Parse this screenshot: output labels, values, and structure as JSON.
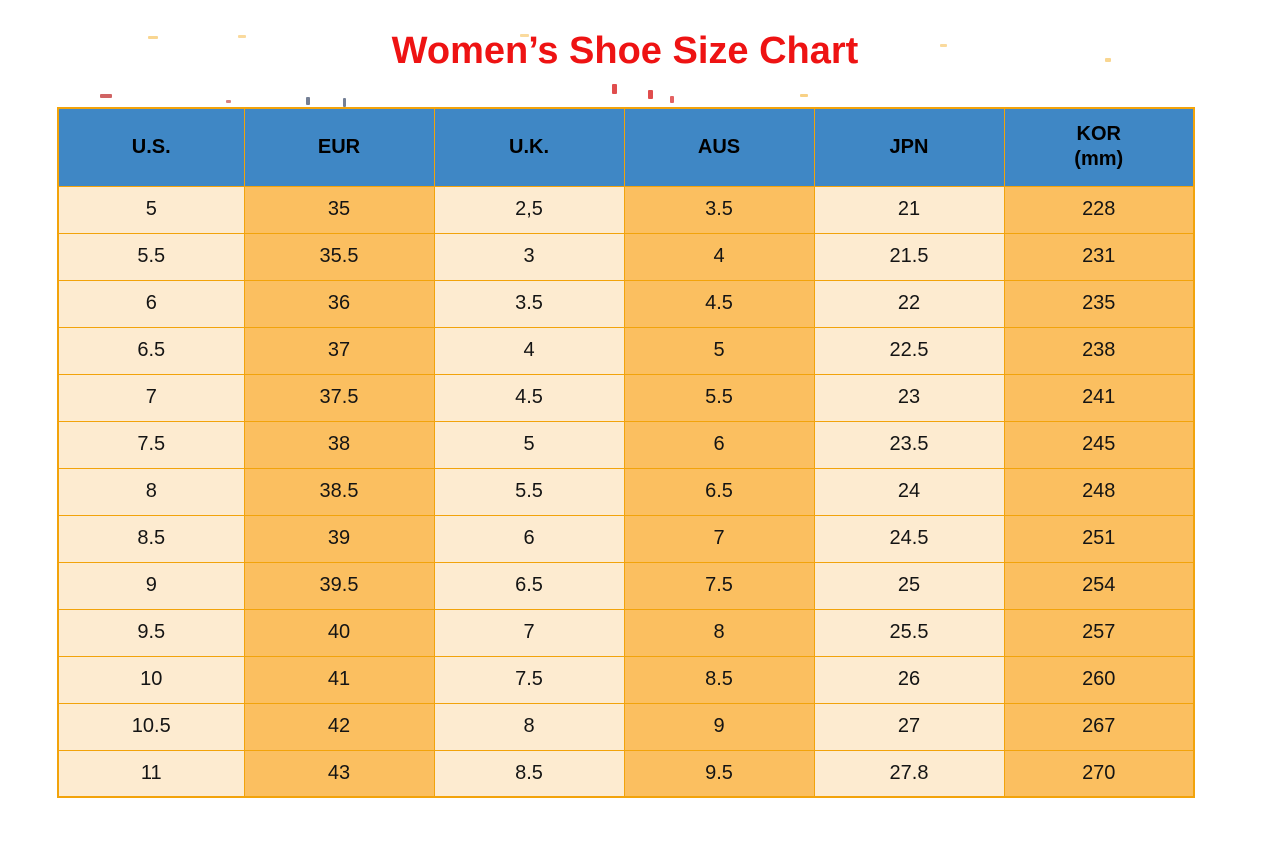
{
  "page": {
    "title": "Women’s Shoe Size Chart",
    "title_color": "#ee1313",
    "background": "#ffffff"
  },
  "chart_data": {
    "type": "table",
    "title": "Women’s Shoe Size Chart",
    "columns": [
      "U.S.",
      "EUR",
      "U.K.",
      "AUS",
      "JPN",
      "KOR (mm)"
    ],
    "header": [
      {
        "label": "U.S."
      },
      {
        "label": "EUR"
      },
      {
        "label": "U.K."
      },
      {
        "label": "AUS"
      },
      {
        "label": "JPN"
      },
      {
        "label": "KOR",
        "sublabel": "(mm)"
      }
    ],
    "rows": [
      [
        "5",
        "35",
        "2,5",
        "3.5",
        "21",
        "228"
      ],
      [
        "5.5",
        "35.5",
        "3",
        "4",
        "21.5",
        "231"
      ],
      [
        "6",
        "36",
        "3.5",
        "4.5",
        "22",
        "235"
      ],
      [
        "6.5",
        "37",
        "4",
        "5",
        "22.5",
        "238"
      ],
      [
        "7",
        "37.5",
        "4.5",
        "5.5",
        "23",
        "241"
      ],
      [
        "7.5",
        "38",
        "5",
        "6",
        "23.5",
        "245"
      ],
      [
        "8",
        "38.5",
        "5.5",
        "6.5",
        "24",
        "248"
      ],
      [
        "8.5",
        "39",
        "6",
        "7",
        "24.5",
        "251"
      ],
      [
        "9",
        "39.5",
        "6.5",
        "7.5",
        "25",
        "254"
      ],
      [
        "9.5",
        "40",
        "7",
        "8",
        "25.5",
        "257"
      ],
      [
        "10",
        "41",
        "7.5",
        "8.5",
        "26",
        "260"
      ],
      [
        "10.5",
        "42",
        "8",
        "9",
        "27",
        "267"
      ],
      [
        "11",
        "43",
        "8.5",
        "9.5",
        "27.8",
        "270"
      ]
    ],
    "layout": {
      "grid": "on",
      "column_shading": [
        "light",
        "orange",
        "light",
        "orange",
        "light",
        "orange"
      ]
    },
    "colors": {
      "header_bg": "#3f87c5",
      "col_light": "#fdebd0",
      "col_orange": "#fbbf60",
      "grid": "#f2a30b",
      "cell_text": "#141414",
      "title": "#ee1313"
    }
  }
}
